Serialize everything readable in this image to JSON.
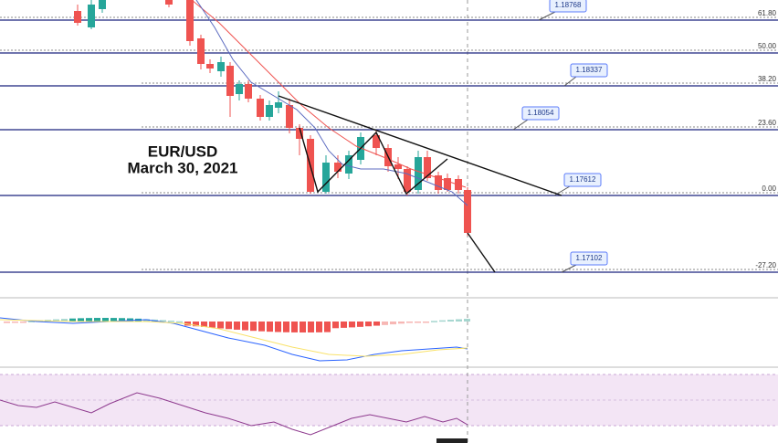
{
  "chart_title": "EUR/USD",
  "chart_date": "March 30, 2021",
  "fib_levels": [
    "61.80",
    "50.00",
    "38.20",
    "23.60",
    "0.00",
    "-27.20"
  ],
  "price_labels": [
    "1.18768",
    "1.18337",
    "1.18054",
    "1.17612",
    "1.17102"
  ]
}
